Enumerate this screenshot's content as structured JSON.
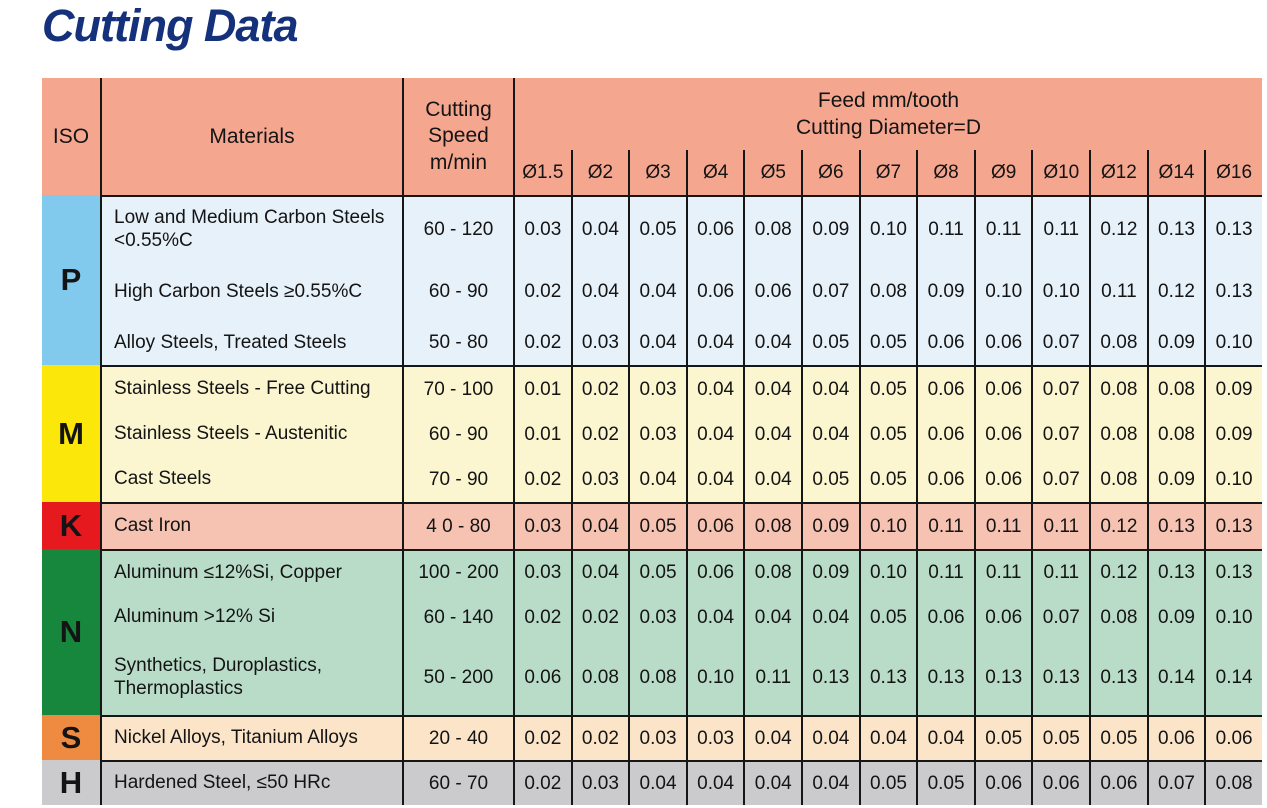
{
  "title": "Cutting Data",
  "table": {
    "headers": {
      "iso": "ISO",
      "materials": "Materials",
      "cutting_speed_lines": [
        "Cutting",
        "Speed",
        "m/min"
      ],
      "feed_title_line1": "Feed mm/tooth",
      "feed_title_line2": "Cutting Diameter=D",
      "diameters": [
        "Ø1.5",
        "Ø2",
        "Ø3",
        "Ø4",
        "Ø5",
        "Ø6",
        "Ø7",
        "Ø8",
        "Ø9",
        "Ø10",
        "Ø12",
        "Ø14",
        "Ø16"
      ]
    },
    "colors": {
      "header_bg": "#F4A68F",
      "grid_line": "#161616",
      "title_text": "#15317B"
    },
    "sections": [
      {
        "iso": "P",
        "colors": {
          "iso_bg": "#82CAED",
          "row_bg": "#E6F1FA"
        },
        "rows": [
          {
            "material": "Low and Medium Carbon Steels <0.55%C",
            "speed": "60 - 120",
            "feeds": [
              "0.03",
              "0.04",
              "0.05",
              "0.06",
              "0.08",
              "0.09",
              "0.10",
              "0.11",
              "0.11",
              "0.11",
              "0.12",
              "0.13",
              "0.13"
            ]
          },
          {
            "material": "High Carbon Steels ≥0.55%C",
            "speed": "60 - 90",
            "feeds": [
              "0.02",
              "0.04",
              "0.04",
              "0.06",
              "0.06",
              "0.07",
              "0.08",
              "0.09",
              "0.10",
              "0.10",
              "0.11",
              "0.12",
              "0.13"
            ]
          },
          {
            "material": "Alloy Steels, Treated Steels",
            "speed": "50 - 80",
            "feeds": [
              "0.02",
              "0.03",
              "0.04",
              "0.04",
              "0.04",
              "0.05",
              "0.05",
              "0.06",
              "0.06",
              "0.07",
              "0.08",
              "0.09",
              "0.10"
            ]
          }
        ]
      },
      {
        "iso": "M",
        "colors": {
          "iso_bg": "#FCE70A",
          "row_bg": "#FBF6D0"
        },
        "rows": [
          {
            "material": "Stainless Steels - Free Cutting",
            "speed": "70 - 100",
            "feeds": [
              "0.01",
              "0.02",
              "0.03",
              "0.04",
              "0.04",
              "0.04",
              "0.05",
              "0.06",
              "0.06",
              "0.07",
              "0.08",
              "0.08",
              "0.09"
            ]
          },
          {
            "material": "Stainless Steels - Austenitic",
            "speed": "60 - 90",
            "feeds": [
              "0.01",
              "0.02",
              "0.03",
              "0.04",
              "0.04",
              "0.04",
              "0.05",
              "0.06",
              "0.06",
              "0.07",
              "0.08",
              "0.08",
              "0.09"
            ]
          },
          {
            "material": "Cast Steels",
            "speed": "70 - 90",
            "feeds": [
              "0.02",
              "0.03",
              "0.04",
              "0.04",
              "0.04",
              "0.05",
              "0.05",
              "0.06",
              "0.06",
              "0.07",
              "0.08",
              "0.09",
              "0.10"
            ]
          }
        ]
      },
      {
        "iso": "K",
        "colors": {
          "iso_bg": "#E6191F",
          "row_bg": "#F6C2B1"
        },
        "rows": [
          {
            "material": "Cast Iron",
            "speed": "4 0 - 80",
            "feeds": [
              "0.03",
              "0.04",
              "0.05",
              "0.06",
              "0.08",
              "0.09",
              "0.10",
              "0.11",
              "0.11",
              "0.11",
              "0.12",
              "0.13",
              "0.13"
            ]
          }
        ]
      },
      {
        "iso": "N",
        "colors": {
          "iso_bg": "#16873D",
          "row_bg": "#B9DCC8"
        },
        "rows": [
          {
            "material": "Aluminum ≤12%Si, Copper",
            "speed": "100 - 200",
            "feeds": [
              "0.03",
              "0.04",
              "0.05",
              "0.06",
              "0.08",
              "0.09",
              "0.10",
              "0.11",
              "0.11",
              "0.11",
              "0.12",
              "0.13",
              "0.13"
            ]
          },
          {
            "material": "Aluminum >12% Si",
            "speed": "60 - 140",
            "feeds": [
              "0.02",
              "0.02",
              "0.03",
              "0.04",
              "0.04",
              "0.04",
              "0.05",
              "0.06",
              "0.06",
              "0.07",
              "0.08",
              "0.09",
              "0.10"
            ]
          },
          {
            "material": "Synthetics, Duroplastics, Thermoplastics",
            "speed": "50 - 200",
            "feeds": [
              "0.06",
              "0.08",
              "0.08",
              "0.10",
              "0.11",
              "0.13",
              "0.13",
              "0.13",
              "0.13",
              "0.13",
              "0.13",
              "0.14",
              "0.14"
            ]
          }
        ]
      },
      {
        "iso": "S",
        "colors": {
          "iso_bg": "#EF8B41",
          "row_bg": "#FBE4C8"
        },
        "rows": [
          {
            "material": "Nickel Alloys, Titanium Alloys",
            "speed": "20 - 40",
            "feeds": [
              "0.02",
              "0.02",
              "0.03",
              "0.03",
              "0.04",
              "0.04",
              "0.04",
              "0.04",
              "0.05",
              "0.05",
              "0.05",
              "0.06",
              "0.06"
            ]
          }
        ]
      },
      {
        "iso": "H",
        "colors": {
          "iso_bg": "#CBCBCD",
          "row_bg": "#CBCBCD"
        },
        "rows": [
          {
            "material": "Hardened Steel, ≤50 HRc",
            "speed": "60 - 70",
            "feeds": [
              "0.02",
              "0.03",
              "0.04",
              "0.04",
              "0.04",
              "0.04",
              "0.05",
              "0.05",
              "0.06",
              "0.06",
              "0.06",
              "0.07",
              "0.08"
            ]
          }
        ]
      }
    ]
  }
}
